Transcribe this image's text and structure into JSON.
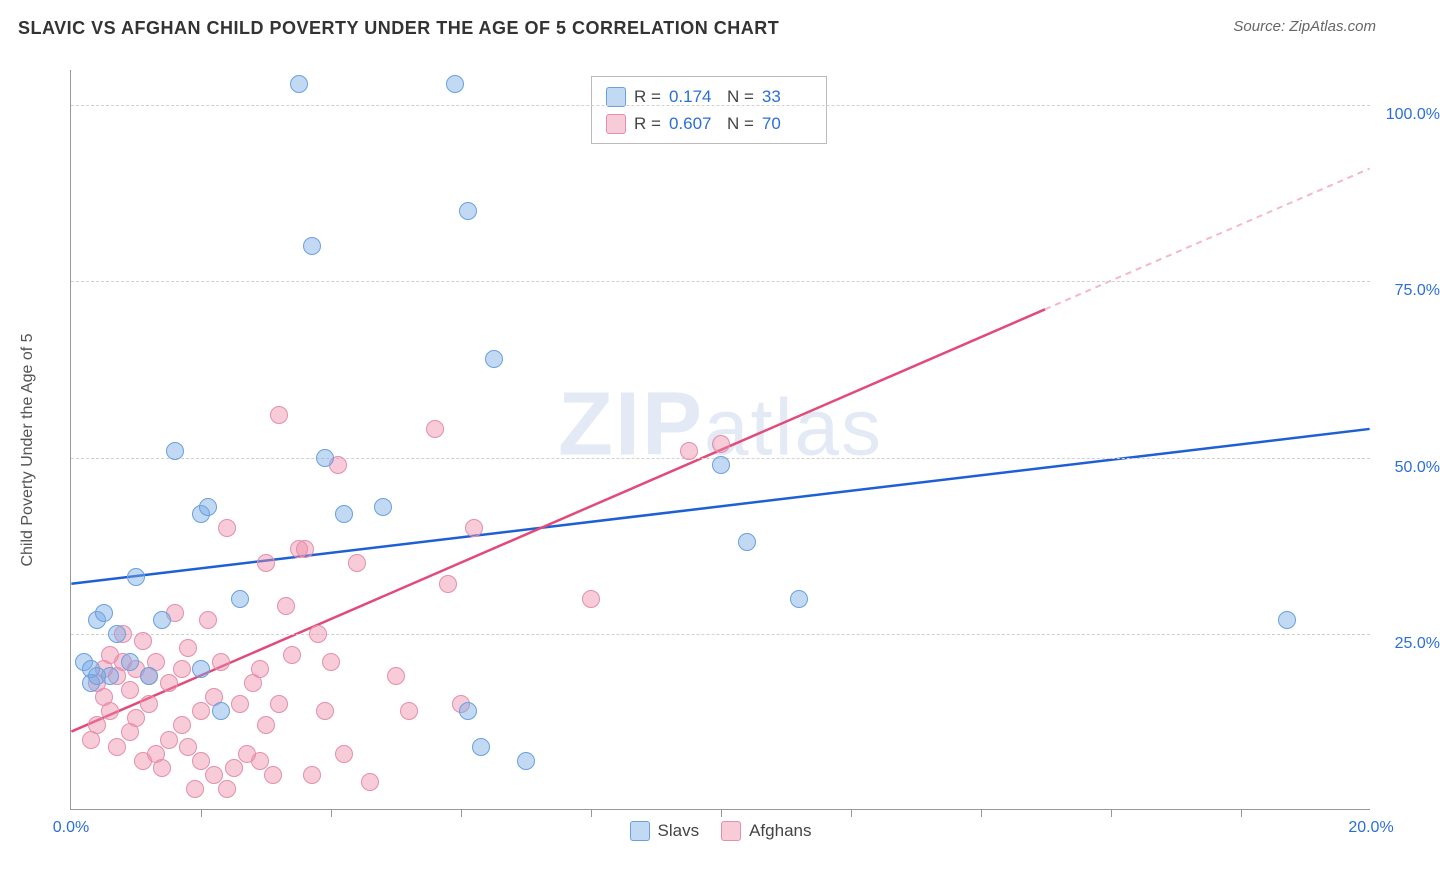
{
  "header": {
    "title": "SLAVIC VS AFGHAN CHILD POVERTY UNDER THE AGE OF 5 CORRELATION CHART",
    "source_label": "Source: ",
    "source_value": "ZipAtlas.com"
  },
  "chart": {
    "type": "scatter",
    "yaxis_title": "Child Poverty Under the Age of 5",
    "xlim": [
      0,
      20
    ],
    "ylim": [
      0,
      105
    ],
    "xtick_labels": [
      "0.0%",
      "20.0%"
    ],
    "xtick_positions": [
      0,
      20
    ],
    "xtick_minor": [
      2,
      4,
      6,
      8,
      10,
      12,
      14,
      16,
      18
    ],
    "ytick_labels": [
      "25.0%",
      "50.0%",
      "75.0%",
      "100.0%"
    ],
    "ytick_positions": [
      25,
      50,
      75,
      100
    ],
    "grid_color": "#d0d0d0",
    "background_color": "#ffffff",
    "axis_color": "#999999",
    "label_color": "#2b6fd6",
    "label_fontsize": 16,
    "watermark": "ZIPatlas",
    "series": {
      "slavs": {
        "label": "Slavs",
        "fill": "rgba(120,170,230,0.45)",
        "stroke": "#6aa0de",
        "trend_color": "#1f5fd6",
        "trend_dash_color": "#1f5fd6",
        "marker_radius": 9,
        "trend": {
          "x1": 0,
          "y1": 32,
          "x2": 20,
          "y2": 54,
          "dash_from_x": 20
        },
        "points": [
          [
            0.2,
            21
          ],
          [
            0.3,
            20
          ],
          [
            0.4,
            27
          ],
          [
            0.5,
            28
          ],
          [
            0.6,
            19
          ],
          [
            0.7,
            25
          ],
          [
            0.9,
            21
          ],
          [
            1.0,
            33
          ],
          [
            1.2,
            19
          ],
          [
            1.4,
            27
          ],
          [
            1.6,
            51
          ],
          [
            2.0,
            20
          ],
          [
            2.0,
            42
          ],
          [
            2.1,
            43
          ],
          [
            2.3,
            14
          ],
          [
            2.6,
            30
          ],
          [
            3.5,
            103
          ],
          [
            3.7,
            80
          ],
          [
            3.9,
            50
          ],
          [
            4.2,
            42
          ],
          [
            4.8,
            43
          ],
          [
            5.9,
            103
          ],
          [
            6.1,
            85
          ],
          [
            6.1,
            14
          ],
          [
            6.3,
            9
          ],
          [
            6.5,
            64
          ],
          [
            7.0,
            7
          ],
          [
            10.0,
            49
          ],
          [
            10.4,
            38
          ],
          [
            11.2,
            30
          ],
          [
            18.7,
            27
          ],
          [
            0.3,
            18
          ],
          [
            0.4,
            19
          ]
        ]
      },
      "afghans": {
        "label": "Afghans",
        "fill": "rgba(240,140,170,0.45)",
        "stroke": "#e48fab",
        "trend_color": "#e24a7a",
        "trend_dash_color": "#f4b8c9",
        "marker_radius": 9,
        "trend": {
          "x1": 0,
          "y1": 11,
          "x2": 20,
          "y2": 91,
          "dash_from_x": 15
        },
        "points": [
          [
            0.3,
            10
          ],
          [
            0.4,
            12
          ],
          [
            0.4,
            18
          ],
          [
            0.5,
            20
          ],
          [
            0.5,
            16
          ],
          [
            0.6,
            22
          ],
          [
            0.6,
            14
          ],
          [
            0.7,
            19
          ],
          [
            0.7,
            9
          ],
          [
            0.8,
            21
          ],
          [
            0.8,
            25
          ],
          [
            0.9,
            11
          ],
          [
            0.9,
            17
          ],
          [
            1.0,
            20
          ],
          [
            1.0,
            13
          ],
          [
            1.1,
            7
          ],
          [
            1.1,
            24
          ],
          [
            1.2,
            19
          ],
          [
            1.2,
            15
          ],
          [
            1.3,
            8
          ],
          [
            1.3,
            21
          ],
          [
            1.4,
            6
          ],
          [
            1.5,
            10
          ],
          [
            1.5,
            18
          ],
          [
            1.6,
            28
          ],
          [
            1.7,
            20
          ],
          [
            1.7,
            12
          ],
          [
            1.8,
            9
          ],
          [
            1.8,
            23
          ],
          [
            1.9,
            3
          ],
          [
            2.0,
            7
          ],
          [
            2.0,
            14
          ],
          [
            2.1,
            27
          ],
          [
            2.2,
            16
          ],
          [
            2.2,
            5
          ],
          [
            2.3,
            21
          ],
          [
            2.4,
            40
          ],
          [
            2.4,
            3
          ],
          [
            2.5,
            6
          ],
          [
            2.6,
            15
          ],
          [
            2.7,
            8
          ],
          [
            2.8,
            18
          ],
          [
            2.9,
            20
          ],
          [
            2.9,
            7
          ],
          [
            3.0,
            35
          ],
          [
            3.0,
            12
          ],
          [
            3.1,
            5
          ],
          [
            3.2,
            15
          ],
          [
            3.2,
            56
          ],
          [
            3.3,
            29
          ],
          [
            3.4,
            22
          ],
          [
            3.5,
            37
          ],
          [
            3.6,
            37
          ],
          [
            3.7,
            5
          ],
          [
            3.8,
            25
          ],
          [
            3.9,
            14
          ],
          [
            4.0,
            21
          ],
          [
            4.1,
            49
          ],
          [
            4.2,
            8
          ],
          [
            4.4,
            35
          ],
          [
            4.6,
            4
          ],
          [
            5.0,
            19
          ],
          [
            5.2,
            14
          ],
          [
            5.6,
            54
          ],
          [
            5.8,
            32
          ],
          [
            6.0,
            15
          ],
          [
            6.2,
            40
          ],
          [
            8.0,
            30
          ],
          [
            9.5,
            51
          ],
          [
            10.0,
            52
          ]
        ]
      }
    },
    "legend_top": {
      "rows": [
        {
          "swatch": "slavs",
          "r_label": "R =",
          "r_value": "0.174",
          "n_label": "N =",
          "n_value": "33"
        },
        {
          "swatch": "afghans",
          "r_label": "R =",
          "r_value": "0.607",
          "n_label": "N =",
          "n_value": "70"
        }
      ]
    },
    "legend_bottom": [
      {
        "swatch": "slavs",
        "label": "Slavs"
      },
      {
        "swatch": "afghans",
        "label": "Afghans"
      }
    ]
  }
}
